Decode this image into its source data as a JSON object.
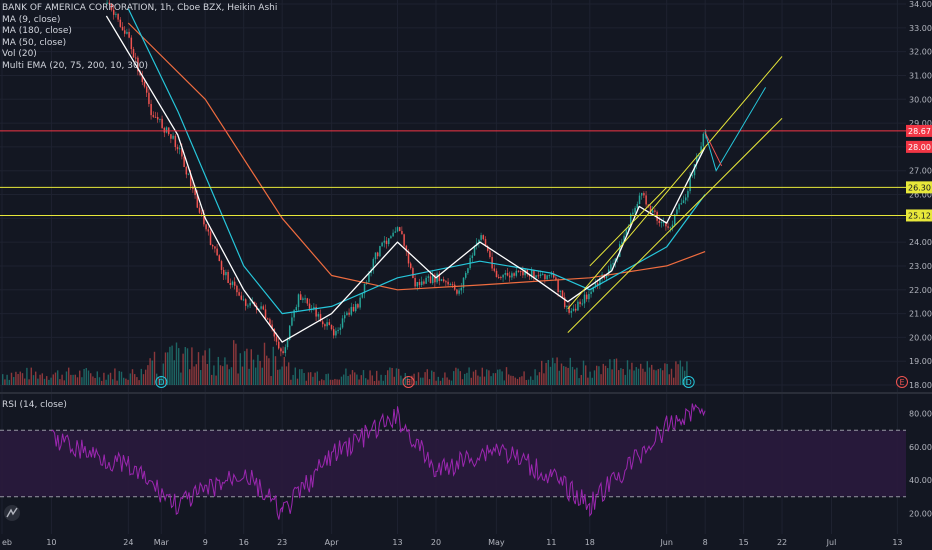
{
  "legend": {
    "title": "BANK OF AMERICA CORPORATION, 1h, Cboe BZX, Heikin Ashi",
    "studies": [
      "MA (9, close)",
      "MA (180, close)",
      "MA (50, close)",
      "Vol (20)",
      "Multi EMA (20, 75, 200, 10, 300)"
    ]
  },
  "rsi_legend": "RSI (14, close)",
  "colors": {
    "background": "#131722",
    "up": "#26a69a",
    "down": "#ef5350",
    "ma9": "#ffffff",
    "ma50": "#26c6da",
    "ma180": "#ef6c3f",
    "trendline": "#e8e83a",
    "rsi": "#9c27b0",
    "rsi_band": "#2a1a3d",
    "resistance": "#f23645"
  },
  "chart_data": [
    {
      "type": "candlestick",
      "y_ticks": [
        "34.00",
        "33.00",
        "32.00",
        "31.00",
        "30.00",
        "29.00",
        "28.00",
        "27.00",
        "26.00",
        "25.00",
        "24.00",
        "23.00",
        "22.00",
        "21.00",
        "20.00",
        "19.00",
        "18.00"
      ],
      "ylim": [
        18,
        34
      ],
      "x_ticks": [
        "eb",
        "10",
        "24",
        "Mar",
        "9",
        "16",
        "23",
        "Apr",
        "13",
        "20",
        "May",
        "11",
        "18",
        "Jun",
        "8",
        "15",
        "22",
        "Jul",
        "13"
      ],
      "price_tags": [
        {
          "label": "28.67",
          "value": 28.67,
          "color": "#f23645"
        },
        {
          "label": "28.00",
          "value": 28.0,
          "color": "#f23645"
        },
        {
          "label": "26.30",
          "value": 26.3,
          "color": "#e8e83a"
        },
        {
          "label": "25.12",
          "value": 25.12,
          "color": "#e8e83a"
        }
      ],
      "horizontal_levels": [
        {
          "value": 28.67,
          "color": "#f23645"
        },
        {
          "value": 26.3,
          "color": "#e8e83a"
        },
        {
          "value": 25.12,
          "color": "#e8e83a"
        }
      ],
      "series": [
        {
          "name": "Heikin Ashi",
          "x": [
            "Feb 20",
            "Feb 24",
            "Feb 28",
            "Mar 4",
            "Mar 9",
            "Mar 12",
            "Mar 16",
            "Mar 19",
            "Mar 23",
            "Mar 26",
            "Apr 1",
            "Apr 6",
            "Apr 9",
            "Apr 13",
            "Apr 16",
            "Apr 20",
            "Apr 24",
            "Apr 28",
            "May 1",
            "May 6",
            "May 11",
            "May 14",
            "May 18",
            "May 22",
            "May 27",
            "Jun 1",
            "Jun 4",
            "Jun 8"
          ],
          "values": [
            34.0,
            32.5,
            29.5,
            28.0,
            24.5,
            22.8,
            21.5,
            21.2,
            19.3,
            21.8,
            20.2,
            21.5,
            23.5,
            24.8,
            22.2,
            22.5,
            21.9,
            24.4,
            22.5,
            22.7,
            22.6,
            21.0,
            21.9,
            23.0,
            26.0,
            24.5,
            25.8,
            28.7
          ]
        },
        {
          "name": "MA (9, close)",
          "x": [
            "Feb 20",
            "Mar 4",
            "Mar 9",
            "Mar 16",
            "Mar 23",
            "Apr 1",
            "Apr 13",
            "Apr 20",
            "Apr 28",
            "May 6",
            "May 14",
            "May 22",
            "May 27",
            "Jun 1",
            "Jun 8"
          ],
          "values": [
            33.5,
            28.5,
            25.0,
            22.0,
            19.8,
            21.0,
            24.0,
            22.5,
            24.0,
            22.8,
            21.5,
            22.8,
            25.5,
            24.8,
            28.0
          ]
        },
        {
          "name": "MA (50, close)",
          "x": [
            "Feb 24",
            "Mar 4",
            "Mar 16",
            "Mar 23",
            "Apr 1",
            "Apr 13",
            "Apr 28",
            "May 11",
            "May 18",
            "Jun 1",
            "Jun 8"
          ],
          "values": [
            33.8,
            29.5,
            23.0,
            21.0,
            21.3,
            22.5,
            23.2,
            22.7,
            22.0,
            23.8,
            26.0
          ]
        },
        {
          "name": "MA (180, close)",
          "x": [
            "Feb 24",
            "Mar 9",
            "Mar 23",
            "Apr 1",
            "Apr 13",
            "Apr 28",
            "May 18",
            "Jun 1",
            "Jun 8"
          ],
          "values": [
            33.2,
            30.0,
            25.0,
            22.6,
            22.0,
            22.2,
            22.5,
            23.0,
            23.6
          ]
        }
      ],
      "volume_markers": [
        "D",
        "E",
        "D",
        "E"
      ]
    },
    {
      "type": "line",
      "name": "RSI (14, close)",
      "y_ticks": [
        "80.00",
        "60.00",
        "40.00",
        "20.00"
      ],
      "ylim": [
        10,
        90
      ],
      "levels": [
        70,
        30
      ],
      "x": [
        "Feb 10",
        "Feb 24",
        "Mar 4",
        "Mar 16",
        "Mar 23",
        "Apr 1",
        "Apr 13",
        "Apr 20",
        "May 1",
        "May 11",
        "May 18",
        "Jun 1",
        "Jun 8"
      ],
      "values": [
        65,
        48,
        25,
        45,
        20,
        55,
        78,
        45,
        60,
        42,
        25,
        72,
        86
      ]
    }
  ]
}
